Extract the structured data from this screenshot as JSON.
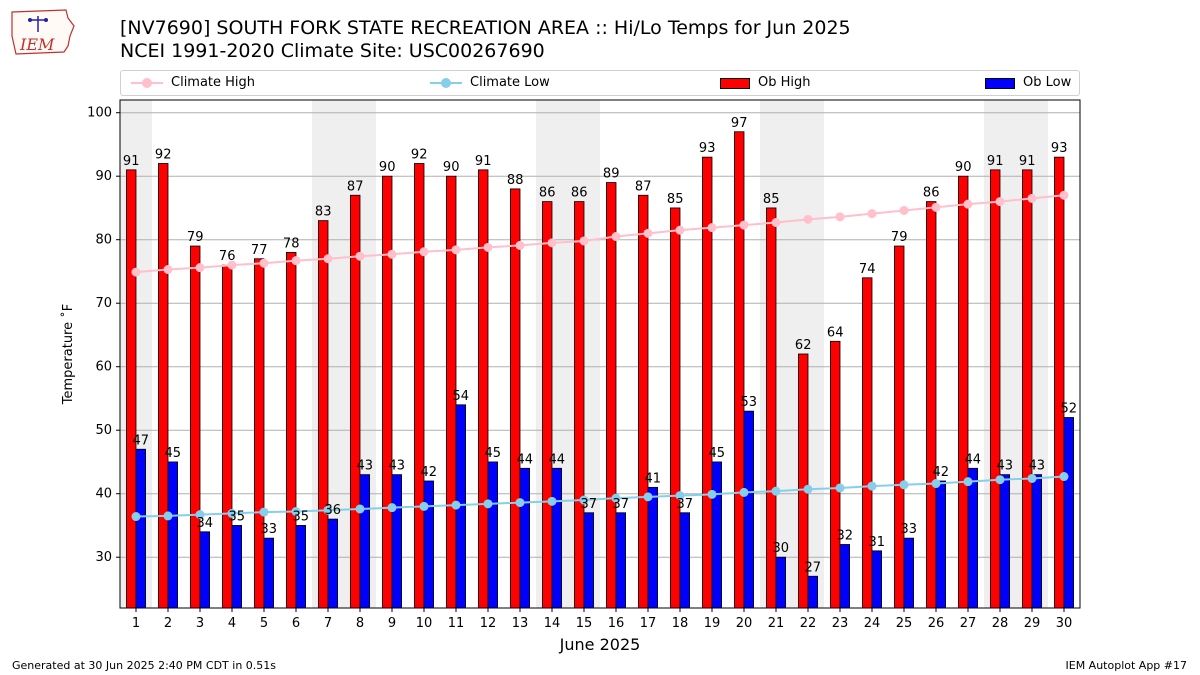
{
  "logo_text": "IEM",
  "title": "[NV7690] SOUTH FORK STATE RECREATION AREA :: Hi/Lo Temps for Jun 2025",
  "subtitle": "NCEI 1991-2020 Climate Site: USC00267690",
  "footer_left": "Generated at 30 Jun 2025 2:40 PM CDT in 0.51s",
  "footer_right": "IEM Autoplot App #17",
  "colors": {
    "ob_high": "#ff0000",
    "ob_low": "#0000ff",
    "climate_high": "#ffc0cb",
    "climate_low": "#87ceeb",
    "weekend_shade": "#efefef",
    "grid": "#b0b0b0"
  },
  "chart_data": {
    "type": "bar",
    "xlabel": "June 2025",
    "ylabel": "Temperature ˚F",
    "ylim": [
      22,
      102
    ],
    "yticks": [
      30,
      40,
      50,
      60,
      70,
      80,
      90,
      100
    ],
    "grid": "horizontal",
    "legend_position": "top",
    "categories": [
      "1",
      "2",
      "3",
      "4",
      "5",
      "6",
      "7",
      "8",
      "9",
      "10",
      "11",
      "12",
      "13",
      "14",
      "15",
      "16",
      "17",
      "18",
      "19",
      "20",
      "21",
      "22",
      "23",
      "24",
      "25",
      "26",
      "27",
      "28",
      "29",
      "30"
    ],
    "shaded_days": [
      "1",
      "7",
      "8",
      "14",
      "15",
      "21",
      "22",
      "28",
      "29"
    ],
    "series": [
      {
        "name": "Ob High",
        "kind": "bar",
        "values": [
          91,
          92,
          79,
          76,
          77,
          78,
          83,
          87,
          90,
          92,
          90,
          91,
          88,
          86,
          86,
          89,
          87,
          85,
          93,
          97,
          85,
          62,
          64,
          74,
          79,
          86,
          90,
          91,
          91,
          93
        ]
      },
      {
        "name": "Ob Low",
        "kind": "bar",
        "values": [
          47,
          45,
          34,
          35,
          33,
          35,
          36,
          43,
          43,
          42,
          54,
          45,
          44,
          44,
          37,
          37,
          41,
          37,
          45,
          53,
          30,
          27,
          32,
          31,
          33,
          42,
          44,
          43,
          43,
          52
        ]
      },
      {
        "name": "Climate High",
        "kind": "line",
        "values": [
          74.9,
          75.3,
          75.6,
          76.0,
          76.3,
          76.7,
          77.0,
          77.4,
          77.7,
          78.1,
          78.4,
          78.8,
          79.1,
          79.5,
          79.8,
          80.5,
          81.0,
          81.5,
          81.9,
          82.3,
          82.7,
          83.2,
          83.6,
          84.1,
          84.6,
          85.1,
          85.6,
          86.0,
          86.5,
          87.0
        ]
      },
      {
        "name": "Climate Low",
        "kind": "line",
        "values": [
          36.4,
          36.5,
          36.7,
          36.9,
          37.1,
          37.2,
          37.4,
          37.6,
          37.8,
          38.0,
          38.2,
          38.4,
          38.6,
          38.8,
          39.0,
          39.3,
          39.5,
          39.7,
          39.9,
          40.2,
          40.4,
          40.7,
          40.9,
          41.2,
          41.4,
          41.6,
          41.9,
          42.2,
          42.4,
          42.7
        ]
      }
    ]
  }
}
